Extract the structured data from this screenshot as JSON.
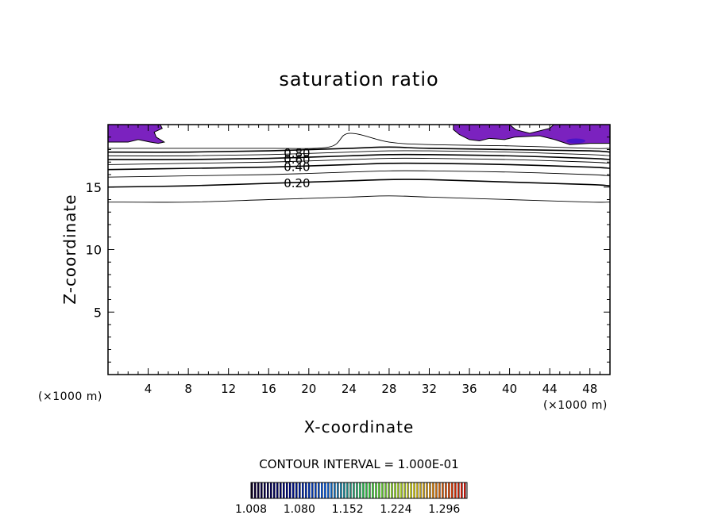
{
  "chart_data": {
    "type": "contour",
    "title": "saturation ratio",
    "xlabel": "X-coordinate",
    "ylabel": "Z-coordinate",
    "x_unit": "(×1000 m)",
    "y_unit": "(×1000 m)",
    "xlim": [
      0,
      50
    ],
    "ylim": [
      0,
      20
    ],
    "x_ticks": [
      4,
      8,
      12,
      16,
      20,
      24,
      28,
      32,
      36,
      40,
      44,
      48
    ],
    "y_ticks": [
      5,
      10,
      15
    ],
    "contour_interval_text": "CONTOUR INTERVAL = 1.000E-01",
    "contour_labels": [
      {
        "text": "0.20",
        "x": 17.5,
        "z": 15.3
      },
      {
        "text": "0.40",
        "x": 17.5,
        "z": 16.6
      },
      {
        "text": "0.60",
        "x": 17.5,
        "z": 17.2
      },
      {
        "text": "0.80",
        "x": 17.5,
        "z": 17.7
      }
    ],
    "contours": [
      {
        "level": 0.1,
        "x": [
          0,
          8,
          16,
          24,
          28,
          32,
          40,
          48,
          50
        ],
        "z": [
          13.8,
          13.8,
          14.0,
          14.2,
          14.3,
          14.2,
          14.0,
          13.8,
          13.8
        ]
      },
      {
        "level": 0.2,
        "x": [
          0,
          8,
          16,
          24,
          28,
          32,
          40,
          48,
          50
        ],
        "z": [
          15.0,
          15.1,
          15.3,
          15.5,
          15.6,
          15.6,
          15.4,
          15.2,
          15.1
        ]
      },
      {
        "level": 0.3,
        "x": [
          0,
          8,
          16,
          24,
          28,
          32,
          40,
          48,
          50
        ],
        "z": [
          15.8,
          15.9,
          16.0,
          16.2,
          16.3,
          16.3,
          16.2,
          16.0,
          15.9
        ]
      },
      {
        "level": 0.4,
        "x": [
          0,
          8,
          16,
          24,
          28,
          32,
          40,
          48,
          50
        ],
        "z": [
          16.4,
          16.5,
          16.6,
          16.8,
          16.9,
          16.9,
          16.8,
          16.6,
          16.5
        ]
      },
      {
        "level": 0.5,
        "x": [
          0,
          8,
          16,
          24,
          28,
          32,
          40,
          48,
          50
        ],
        "z": [
          16.8,
          16.9,
          17.0,
          17.2,
          17.3,
          17.3,
          17.2,
          17.0,
          16.9
        ]
      },
      {
        "level": 0.6,
        "x": [
          0,
          8,
          16,
          24,
          28,
          32,
          40,
          48,
          50
        ],
        "z": [
          17.2,
          17.2,
          17.3,
          17.5,
          17.6,
          17.6,
          17.5,
          17.3,
          17.2
        ]
      },
      {
        "level": 0.7,
        "x": [
          0,
          8,
          16,
          24,
          28,
          32,
          40,
          48,
          50
        ],
        "z": [
          17.5,
          17.5,
          17.6,
          17.8,
          17.9,
          17.9,
          17.8,
          17.6,
          17.5
        ]
      },
      {
        "level": 0.8,
        "x": [
          0,
          8,
          16,
          24,
          28,
          32,
          40,
          48,
          50
        ],
        "z": [
          17.8,
          17.8,
          17.9,
          18.1,
          18.2,
          18.1,
          18.0,
          17.9,
          17.8
        ]
      },
      {
        "level": 0.9,
        "x": [
          0,
          8,
          16,
          22,
          24,
          28,
          32,
          40,
          48,
          50
        ],
        "z": [
          18.1,
          18.1,
          18.1,
          18.2,
          19.3,
          18.6,
          18.4,
          18.3,
          18.1,
          18.1
        ]
      }
    ],
    "supersaturated_regions": [
      {
        "x": [
          0,
          5.2,
          5.4,
          4.6,
          4.8,
          5.6,
          5.0,
          4.2,
          3.0,
          2.0,
          0
        ],
        "z": [
          20,
          20,
          19.7,
          19.4,
          19.0,
          18.6,
          18.5,
          18.6,
          18.8,
          18.6,
          18.6
        ]
      },
      {
        "x": [
          34.4,
          40.0,
          40.6,
          42.0,
          44.0,
          44.4,
          45.0,
          46.8,
          50,
          50,
          48.0,
          46.0,
          44.5,
          43.0,
          40.5,
          39.5,
          38.0,
          37.0,
          36.0,
          35.0,
          34.4
        ],
        "z": [
          20,
          20,
          19.6,
          19.3,
          19.7,
          20,
          20,
          20,
          20,
          18.5,
          18.5,
          18.4,
          18.8,
          19.1,
          19.0,
          18.8,
          18.9,
          18.7,
          18.8,
          19.2,
          19.6
        ]
      }
    ],
    "colorbar": {
      "tick_labels": [
        "1.008",
        "1.080",
        "1.152",
        "1.224",
        "1.296"
      ],
      "range": [
        1.008,
        1.33
      ]
    },
    "colors": {
      "region_fill": "#7b22bf",
      "region_deep": "#4a14c8",
      "axes": "#000000"
    }
  }
}
